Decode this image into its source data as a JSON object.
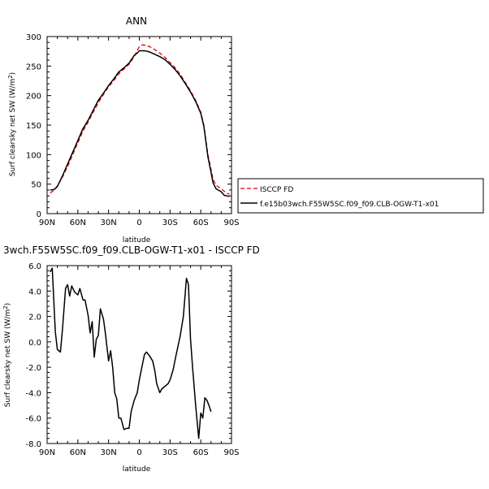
{
  "chart_data": [
    {
      "type": "line",
      "title": "ANN",
      "xlabel": "latitude",
      "ylabel": "Surf clearsky net SW (W/m²)",
      "x_tick_labels": [
        "90N",
        "60N",
        "30N",
        "0",
        "30S",
        "60S",
        "90S"
      ],
      "x_tick_values": [
        90,
        60,
        30,
        0,
        -30,
        -60,
        -90
      ],
      "y_tick_labels": [
        "0",
        "50",
        "100",
        "150",
        "200",
        "250",
        "300"
      ],
      "y_tick_values": [
        0,
        50,
        100,
        150,
        200,
        250,
        300
      ],
      "xlim": [
        90,
        -90
      ],
      "ylim": [
        0,
        300
      ],
      "legend_position": "right",
      "series": [
        {
          "name": "ISCCP FD",
          "color": "#e00000",
          "dash": "dashed",
          "points": [
            [
              87,
              35
            ],
            [
              83,
              40
            ],
            [
              80,
              47
            ],
            [
              75,
              62
            ],
            [
              70,
              80
            ],
            [
              65,
              100
            ],
            [
              60,
              120
            ],
            [
              55,
              140
            ],
            [
              50,
              155
            ],
            [
              45,
              172
            ],
            [
              40,
              188
            ],
            [
              35,
              202
            ],
            [
              30,
              215
            ],
            [
              25,
              225
            ],
            [
              20,
              237
            ],
            [
              15,
              245
            ],
            [
              10,
              253
            ],
            [
              5,
              266
            ],
            [
              2,
              276
            ],
            [
              0,
              283
            ],
            [
              -3,
              286
            ],
            [
              -7,
              285
            ],
            [
              -10,
              283
            ],
            [
              -15,
              278
            ],
            [
              -20,
              272
            ],
            [
              -25,
              265
            ],
            [
              -30,
              256
            ],
            [
              -35,
              247
            ],
            [
              -40,
              236
            ],
            [
              -45,
              222
            ],
            [
              -50,
              208
            ],
            [
              -55,
              192
            ],
            [
              -60,
              172
            ],
            [
              -63,
              150
            ],
            [
              -65,
              125
            ],
            [
              -67,
              100
            ],
            [
              -70,
              75
            ],
            [
              -72,
              58
            ],
            [
              -75,
              48
            ],
            [
              -80,
              42
            ],
            [
              -85,
              35
            ],
            [
              -88,
              33
            ]
          ]
        },
        {
          "name": "f.e15b03wch.F55W5SC.f09_f09.CLB-OGW-T1-x01",
          "color": "#000000",
          "dash": "solid",
          "points": [
            [
              87,
              40
            ],
            [
              83,
              41
            ],
            [
              80,
              46
            ],
            [
              75,
              64
            ],
            [
              70,
              84
            ],
            [
              65,
              104
            ],
            [
              60,
              124
            ],
            [
              55,
              144
            ],
            [
              50,
              158
            ],
            [
              45,
              175
            ],
            [
              40,
              192
            ],
            [
              35,
              204
            ],
            [
              30,
              217
            ],
            [
              25,
              228
            ],
            [
              20,
              240
            ],
            [
              15,
              247
            ],
            [
              10,
              255
            ],
            [
              5,
              268
            ],
            [
              2,
              272
            ],
            [
              0,
              276
            ],
            [
              -5,
              276
            ],
            [
              -10,
              274
            ],
            [
              -15,
              270
            ],
            [
              -20,
              266
            ],
            [
              -25,
              261
            ],
            [
              -30,
              253
            ],
            [
              -35,
              244
            ],
            [
              -40,
              233
            ],
            [
              -45,
              220
            ],
            [
              -50,
              206
            ],
            [
              -55,
              190
            ],
            [
              -60,
              170
            ],
            [
              -63,
              148
            ],
            [
              -65,
              122
            ],
            [
              -67,
              96
            ],
            [
              -70,
              70
            ],
            [
              -72,
              52
            ],
            [
              -75,
              42
            ],
            [
              -80,
              37
            ],
            [
              -83,
              31
            ],
            [
              -86,
              30
            ],
            [
              -88,
              29
            ]
          ]
        }
      ]
    },
    {
      "type": "line",
      "title": "3wch.F55W5SC.f09_f09.CLB-OGW-T1-x01 - ISCCP FD",
      "xlabel": "latitude",
      "ylabel": "Surf clearsky net SW (W/m²)",
      "x_tick_labels": [
        "90N",
        "60N",
        "30N",
        "0",
        "30S",
        "60S",
        "90S"
      ],
      "x_tick_values": [
        90,
        60,
        30,
        0,
        -30,
        -60,
        -90
      ],
      "y_tick_labels": [
        "6.0",
        "4.0",
        "2.0",
        "0.0",
        "-2.0",
        "-4.0",
        "-6.0",
        "-8.0"
      ],
      "y_tick_values": [
        6,
        4,
        2,
        0,
        -2,
        -4,
        -6,
        -8
      ],
      "xlim": [
        90,
        -90
      ],
      "ylim": [
        -8,
        6
      ],
      "series": [
        {
          "color": "#000000",
          "dash": "solid",
          "points": [
            [
              87,
              5.5
            ],
            [
              85,
              5.8
            ],
            [
              82,
              0.8
            ],
            [
              80,
              -0.6
            ],
            [
              77,
              -0.8
            ],
            [
              75,
              1.0
            ],
            [
              72,
              4.2
            ],
            [
              70,
              4.5
            ],
            [
              68,
              3.6
            ],
            [
              66,
              4.4
            ],
            [
              63,
              3.9
            ],
            [
              60,
              3.7
            ],
            [
              58,
              4.2
            ],
            [
              55,
              3.3
            ],
            [
              53,
              3.3
            ],
            [
              50,
              2.1
            ],
            [
              48,
              0.7
            ],
            [
              46,
              1.6
            ],
            [
              44,
              -1.2
            ],
            [
              42,
              0.2
            ],
            [
              40,
              0.5
            ],
            [
              38,
              2.6
            ],
            [
              35,
              1.8
            ],
            [
              33,
              0.6
            ],
            [
              30,
              -1.5
            ],
            [
              28,
              -0.7
            ],
            [
              26,
              -2.0
            ],
            [
              24,
              -4.0
            ],
            [
              22,
              -4.5
            ],
            [
              20,
              -6.0
            ],
            [
              18,
              -6.0
            ],
            [
              15,
              -6.9
            ],
            [
              12,
              -6.8
            ],
            [
              10,
              -6.8
            ],
            [
              8,
              -5.5
            ],
            [
              5,
              -4.6
            ],
            [
              2,
              -4.0
            ],
            [
              0,
              -3.0
            ],
            [
              -3,
              -1.8
            ],
            [
              -5,
              -1.0
            ],
            [
              -7,
              -0.8
            ],
            [
              -10,
              -1.1
            ],
            [
              -13,
              -1.5
            ],
            [
              -15,
              -2.2
            ],
            [
              -17,
              -3.3
            ],
            [
              -20,
              -4.0
            ],
            [
              -22,
              -3.7
            ],
            [
              -25,
              -3.5
            ],
            [
              -28,
              -3.3
            ],
            [
              -30,
              -3.0
            ],
            [
              -33,
              -2.2
            ],
            [
              -36,
              -1.0
            ],
            [
              -40,
              0.5
            ],
            [
              -43,
              2.0
            ],
            [
              -46,
              5.0
            ],
            [
              -48,
              4.5
            ],
            [
              -50,
              0.2
            ],
            [
              -52,
              -2.0
            ],
            [
              -55,
              -5.0
            ],
            [
              -58,
              -7.6
            ],
            [
              -60,
              -5.6
            ],
            [
              -62,
              -6.0
            ],
            [
              -64,
              -4.4
            ],
            [
              -66,
              -4.6
            ],
            [
              -68,
              -5.0
            ],
            [
              -70,
              -5.5
            ]
          ]
        }
      ]
    }
  ]
}
